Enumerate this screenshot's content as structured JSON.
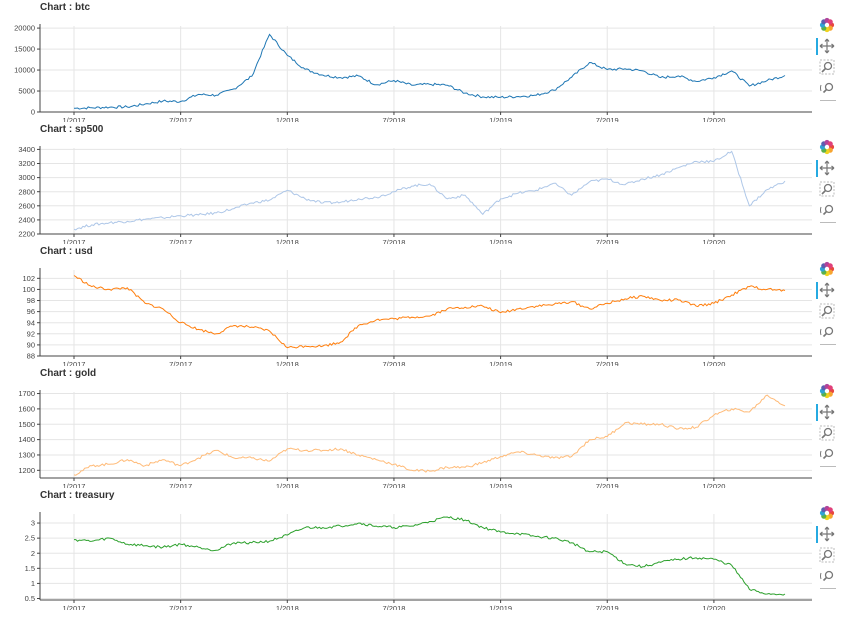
{
  "colors": {
    "btc": "#1f77b4",
    "sp500": "#aec7e8",
    "usd": "#ff7f0e",
    "gold": "#ffbb78",
    "treasury": "#2ca02c",
    "grid": "#e5e5e5",
    "axis": "#444444",
    "toolbar_active": "#26aae1"
  },
  "toolbar": {
    "icons": [
      "bokeh-logo-icon",
      "pan-icon",
      "box-zoom-icon",
      "wheel-zoom-icon"
    ]
  },
  "x_ticks": [
    "1/2017",
    "7/2017",
    "1/2018",
    "7/2018",
    "1/2019",
    "7/2019",
    "1/2020"
  ],
  "chart_data": [
    {
      "type": "line",
      "title": "Chart : btc",
      "x_range": [
        "2017-01",
        "2020-05"
      ],
      "ylim": [
        0,
        20500
      ],
      "y_ticks": [
        0,
        5000,
        10000,
        15000,
        20000
      ],
      "grid": true,
      "series": [
        {
          "color_key": "btc",
          "x": [
            "2017-01",
            "2017-02",
            "2017-03",
            "2017-04",
            "2017-05",
            "2017-06",
            "2017-07",
            "2017-08",
            "2017-09",
            "2017-10",
            "2017-11",
            "2017-12",
            "2018-01",
            "2018-02",
            "2018-03",
            "2018-04",
            "2018-05",
            "2018-06",
            "2018-07",
            "2018-08",
            "2018-09",
            "2018-10",
            "2018-11",
            "2018-12",
            "2019-01",
            "2019-02",
            "2019-03",
            "2019-04",
            "2019-05",
            "2019-06",
            "2019-07",
            "2019-08",
            "2019-09",
            "2019-10",
            "2019-11",
            "2019-12",
            "2020-01",
            "2020-02",
            "2020-03",
            "2020-04",
            "2020-05"
          ],
          "y": [
            900,
            1000,
            1150,
            1200,
            1900,
            2600,
            2500,
            4200,
            4000,
            5500,
            8500,
            18500,
            13500,
            10200,
            8800,
            8200,
            8600,
            6500,
            7500,
            6400,
            6600,
            6400,
            4500,
            3600,
            3500,
            3700,
            4000,
            5200,
            8300,
            11800,
            10100,
            10300,
            9800,
            8200,
            8600,
            7300,
            8200,
            9800,
            6200,
            7500,
            8700
          ]
        }
      ]
    },
    {
      "type": "line",
      "title": "Chart : sp500",
      "x_range": [
        "2017-01",
        "2020-05"
      ],
      "ylim": [
        2200,
        3420
      ],
      "y_ticks": [
        2200,
        2400,
        2600,
        2800,
        3000,
        3200,
        3400
      ],
      "grid": true,
      "series": [
        {
          "color_key": "sp500",
          "x": [
            "2017-01",
            "2017-02",
            "2017-03",
            "2017-04",
            "2017-05",
            "2017-06",
            "2017-07",
            "2017-08",
            "2017-09",
            "2017-10",
            "2017-11",
            "2017-12",
            "2018-01",
            "2018-02",
            "2018-03",
            "2018-04",
            "2018-05",
            "2018-06",
            "2018-07",
            "2018-08",
            "2018-09",
            "2018-10",
            "2018-11",
            "2018-12",
            "2019-01",
            "2019-02",
            "2019-03",
            "2019-04",
            "2019-05",
            "2019-06",
            "2019-07",
            "2019-08",
            "2019-09",
            "2019-10",
            "2019-11",
            "2019-12",
            "2020-01",
            "2020-02",
            "2020-03",
            "2020-04",
            "2020-05"
          ],
          "y": [
            2270,
            2330,
            2360,
            2380,
            2410,
            2430,
            2460,
            2470,
            2500,
            2560,
            2640,
            2680,
            2820,
            2700,
            2640,
            2650,
            2700,
            2720,
            2800,
            2880,
            2910,
            2700,
            2750,
            2480,
            2700,
            2780,
            2820,
            2920,
            2750,
            2940,
            2980,
            2900,
            2980,
            3040,
            3140,
            3230,
            3230,
            3370,
            2600,
            2830,
            2950
          ]
        }
      ]
    },
    {
      "type": "line",
      "title": "Chart : usd",
      "x_range": [
        "2017-01",
        "2020-05"
      ],
      "ylim": [
        88,
        103.5
      ],
      "y_ticks": [
        88,
        90,
        92,
        94,
        96,
        98,
        100,
        102
      ],
      "grid": true,
      "series": [
        {
          "color_key": "usd",
          "x": [
            "2017-01",
            "2017-02",
            "2017-03",
            "2017-04",
            "2017-05",
            "2017-06",
            "2017-07",
            "2017-08",
            "2017-09",
            "2017-10",
            "2017-11",
            "2017-12",
            "2018-01",
            "2018-02",
            "2018-03",
            "2018-04",
            "2018-05",
            "2018-06",
            "2018-07",
            "2018-08",
            "2018-09",
            "2018-10",
            "2018-11",
            "2018-12",
            "2019-01",
            "2019-02",
            "2019-03",
            "2019-04",
            "2019-05",
            "2019-06",
            "2019-07",
            "2019-08",
            "2019-09",
            "2019-10",
            "2019-11",
            "2019-12",
            "2020-01",
            "2020-02",
            "2020-03",
            "2020-04",
            "2020-05"
          ],
          "y": [
            102.5,
            100.5,
            100.0,
            100.3,
            97.5,
            96.5,
            94.0,
            92.8,
            92.0,
            93.5,
            93.2,
            92.5,
            89.5,
            89.8,
            89.8,
            90.5,
            93.5,
            94.5,
            94.7,
            95.0,
            95.2,
            96.5,
            96.8,
            97.0,
            95.8,
            96.5,
            97.0,
            97.3,
            97.8,
            96.5,
            97.5,
            98.3,
            98.8,
            98.0,
            98.1,
            97.0,
            97.5,
            99.0,
            100.5,
            100.0,
            99.8
          ]
        }
      ]
    },
    {
      "type": "line",
      "title": "Chart : gold",
      "x_range": [
        "2017-01",
        "2020-05"
      ],
      "ylim": [
        1150,
        1710
      ],
      "y_ticks": [
        1200,
        1300,
        1400,
        1500,
        1600,
        1700
      ],
      "grid": true,
      "series": [
        {
          "color_key": "gold",
          "x": [
            "2017-01",
            "2017-02",
            "2017-03",
            "2017-04",
            "2017-05",
            "2017-06",
            "2017-07",
            "2017-08",
            "2017-09",
            "2017-10",
            "2017-11",
            "2017-12",
            "2018-01",
            "2018-02",
            "2018-03",
            "2018-04",
            "2018-05",
            "2018-06",
            "2018-07",
            "2018-08",
            "2018-09",
            "2018-10",
            "2018-11",
            "2018-12",
            "2019-01",
            "2019-02",
            "2019-03",
            "2019-04",
            "2019-05",
            "2019-06",
            "2019-07",
            "2019-08",
            "2019-09",
            "2019-10",
            "2019-11",
            "2019-12",
            "2020-01",
            "2020-02",
            "2020-03",
            "2020-04",
            "2020-05"
          ],
          "y": [
            1170,
            1230,
            1240,
            1270,
            1230,
            1270,
            1230,
            1280,
            1330,
            1280,
            1280,
            1260,
            1340,
            1330,
            1330,
            1340,
            1300,
            1270,
            1240,
            1200,
            1195,
            1220,
            1220,
            1250,
            1290,
            1320,
            1300,
            1280,
            1290,
            1400,
            1420,
            1510,
            1500,
            1500,
            1470,
            1480,
            1560,
            1600,
            1580,
            1690,
            1620
          ]
        }
      ]
    },
    {
      "type": "line",
      "title": "Chart : treasury",
      "x_range": [
        "2017-01",
        "2020-05"
      ],
      "ylim": [
        0.45,
        3.3
      ],
      "y_ticks": [
        0.5,
        1,
        1.5,
        2,
        2.5,
        3
      ],
      "grid": true,
      "series": [
        {
          "color_key": "treasury",
          "x": [
            "2017-01",
            "2017-02",
            "2017-03",
            "2017-04",
            "2017-05",
            "2017-06",
            "2017-07",
            "2017-08",
            "2017-09",
            "2017-10",
            "2017-11",
            "2017-12",
            "2018-01",
            "2018-02",
            "2018-03",
            "2018-04",
            "2018-05",
            "2018-06",
            "2018-07",
            "2018-08",
            "2018-09",
            "2018-10",
            "2018-11",
            "2018-12",
            "2019-01",
            "2019-02",
            "2019-03",
            "2019-04",
            "2019-05",
            "2019-06",
            "2019-07",
            "2019-08",
            "2019-09",
            "2019-10",
            "2019-11",
            "2019-12",
            "2020-01",
            "2020-02",
            "2020-03",
            "2020-04",
            "2020-05"
          ],
          "y": [
            2.45,
            2.4,
            2.5,
            2.3,
            2.25,
            2.2,
            2.3,
            2.2,
            2.1,
            2.35,
            2.35,
            2.4,
            2.6,
            2.85,
            2.85,
            2.9,
            3.0,
            2.9,
            2.85,
            2.9,
            3.05,
            3.2,
            3.1,
            2.85,
            2.7,
            2.65,
            2.55,
            2.5,
            2.35,
            2.05,
            2.05,
            1.65,
            1.55,
            1.7,
            1.8,
            1.85,
            1.8,
            1.6,
            0.8,
            0.65,
            0.65
          ]
        }
      ]
    }
  ]
}
